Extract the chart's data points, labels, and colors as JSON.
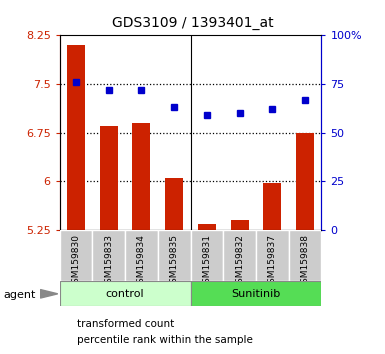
{
  "title": "GDS3109 / 1393401_at",
  "samples": [
    "GSM159830",
    "GSM159833",
    "GSM159834",
    "GSM159835",
    "GSM159831",
    "GSM159832",
    "GSM159837",
    "GSM159838"
  ],
  "bar_values": [
    8.1,
    6.85,
    6.9,
    6.05,
    5.35,
    5.4,
    5.98,
    6.75
  ],
  "dot_values": [
    76,
    72,
    72,
    63,
    59,
    60,
    62,
    67
  ],
  "ylim_left": [
    5.25,
    8.25
  ],
  "ylim_right": [
    0,
    100
  ],
  "yticks_left": [
    5.25,
    6.0,
    6.75,
    7.5,
    8.25
  ],
  "yticks_right": [
    0,
    25,
    50,
    75,
    100
  ],
  "ytick_labels_left": [
    "5.25",
    "6",
    "6.75",
    "7.5",
    "8.25"
  ],
  "ytick_labels_right": [
    "0",
    "25",
    "50",
    "75",
    "100%"
  ],
  "bar_color": "#cc2200",
  "dot_color": "#0000cc",
  "bar_width": 0.55,
  "control_label": "control",
  "sunitinib_label": "Sunitinib",
  "agent_label": "agent",
  "legend_bar_label": "transformed count",
  "legend_dot_label": "percentile rank within the sample",
  "control_color": "#ccffcc",
  "sunitinib_color": "#55dd55",
  "tick_area_color": "#cccccc",
  "left_axis_color": "#cc2200",
  "right_axis_color": "#0000cc",
  "grid_lines": [
    7.5,
    6.75,
    6.0
  ],
  "n_control": 4,
  "n_sunitinib": 4
}
